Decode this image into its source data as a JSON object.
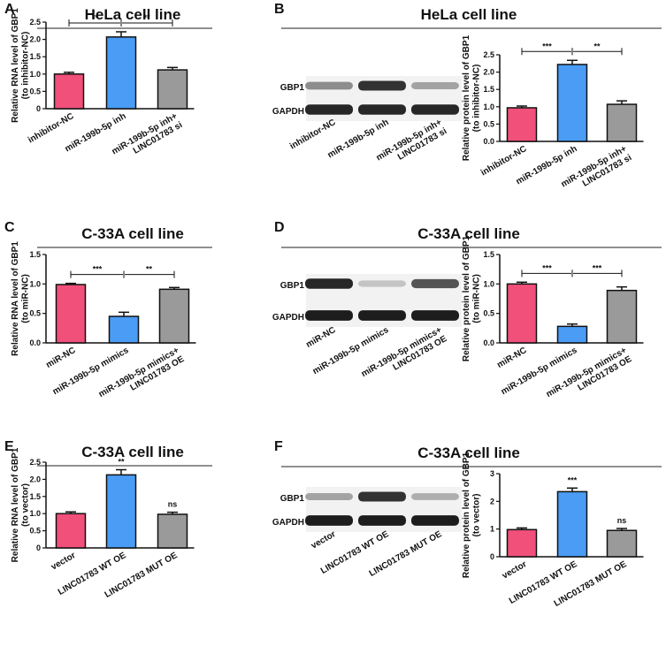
{
  "chart_data": [
    {
      "type": "bar",
      "panel": "A",
      "title": "HeLa cell line",
      "ylabel": "Relative RNA level of GBP1\n(to inhibitor-NC)",
      "categories": [
        "inhibitor-NC",
        "miR-199b-5p inh",
        "miR-199b-5p inh+\nLINC01783 si"
      ],
      "values": [
        1.0,
        2.07,
        1.12
      ],
      "errors": [
        0.05,
        0.15,
        0.07
      ],
      "colors": [
        "#f0507a",
        "#4a9cf5",
        "#9a9a9a"
      ],
      "ylim": [
        0,
        2.5
      ],
      "yticks": [
        0,
        0.5,
        {
          "value": 1,
          "label": "1.0"
        },
        1.5,
        {
          "value": 2,
          "label": "2.0"
        },
        2.5
      ],
      "significance": [
        {
          "label": "**",
          "between": [
            0,
            1
          ]
        },
        {
          "label": "**",
          "between": [
            1,
            2
          ]
        }
      ]
    },
    {
      "type": "bar",
      "panel": "B",
      "title": "HeLa cell line",
      "ylabel": "Relative protein level of GBP1\n(to inhibitor-NC)",
      "categories": [
        "inhibitor-NC",
        "miR-199b-5p inh",
        "miR-199b-5p inh+\nLINC01783 si"
      ],
      "values": [
        0.97,
        2.22,
        1.07
      ],
      "errors": [
        0.05,
        0.12,
        0.1
      ],
      "colors": [
        "#f0507a",
        "#4a9cf5",
        "#9a9a9a"
      ],
      "ylim": [
        0,
        2.5
      ],
      "yticks": [
        {
          "value": 0,
          "label": "0.0"
        },
        0.5,
        {
          "value": 1,
          "label": "1.0"
        },
        1.5,
        {
          "value": 2,
          "label": "2.0"
        },
        2.5
      ],
      "significance": [
        {
          "label": "***",
          "between": [
            0,
            1
          ]
        },
        {
          "label": "**",
          "between": [
            1,
            2
          ]
        }
      ],
      "blot_rows": [
        "GBP1",
        "GAPDH"
      ],
      "blot_lanes": [
        "inhibitor-NC",
        "miR-199b-5p inh",
        "miR-199b-5p inh+\nLINC01783 si"
      ]
    },
    {
      "type": "bar",
      "panel": "C",
      "title": "C-33A cell line",
      "ylabel": "Relative RNA level of GBP1\n(to miR-NC)",
      "categories": [
        "miR-NC",
        "miR-199b-5p mimics",
        "miR-199b-5p mimics+\nLINC01783 OE"
      ],
      "values": [
        0.99,
        0.45,
        0.91
      ],
      "errors": [
        0.02,
        0.07,
        0.03
      ],
      "colors": [
        "#f0507a",
        "#4a9cf5",
        "#9a9a9a"
      ],
      "ylim": [
        0,
        1.5
      ],
      "yticks": [
        {
          "value": 0,
          "label": "0.0"
        },
        0.5,
        {
          "value": 1,
          "label": "1.0"
        },
        1.5
      ],
      "significance": [
        {
          "label": "***",
          "between": [
            0,
            1
          ]
        },
        {
          "label": "**",
          "between": [
            1,
            2
          ]
        }
      ]
    },
    {
      "type": "bar",
      "panel": "D",
      "title": "C-33A cell line",
      "ylabel": "Relative protein level of GBP1\n(to miR-NC)",
      "categories": [
        "miR-NC",
        "miR-199b-5p mimics",
        "miR-199b-5p mimics+\nLINC01783 OE"
      ],
      "values": [
        1.0,
        0.28,
        0.89
      ],
      "errors": [
        0.03,
        0.04,
        0.06
      ],
      "colors": [
        "#f0507a",
        "#4a9cf5",
        "#9a9a9a"
      ],
      "ylim": [
        0,
        1.5
      ],
      "yticks": [
        {
          "value": 0,
          "label": "0.0"
        },
        0.5,
        {
          "value": 1,
          "label": "1.0"
        },
        1.5
      ],
      "significance": [
        {
          "label": "***",
          "between": [
            0,
            1
          ]
        },
        {
          "label": "***",
          "between": [
            1,
            2
          ]
        }
      ],
      "blot_rows": [
        "GBP1",
        "GAPDH"
      ],
      "blot_lanes": [
        "miR-NC",
        "miR-199b-5p mimics",
        "miR-199b-5p mimics+\nLINC01783 OE"
      ]
    },
    {
      "type": "bar",
      "panel": "E",
      "title": "C-33A cell line",
      "ylabel": "Relative RNA level of GBP1\n(to vector)",
      "categories": [
        "vector",
        "LINC01783 WT OE",
        "LINC01783 MUT OE"
      ],
      "values": [
        1.0,
        2.13,
        0.98
      ],
      "errors": [
        0.05,
        0.15,
        0.06
      ],
      "colors": [
        "#f0507a",
        "#4a9cf5",
        "#9a9a9a"
      ],
      "ylim": [
        0,
        2.5
      ],
      "yticks": [
        0,
        0.5,
        {
          "value": 1,
          "label": "1.0"
        },
        1.5,
        {
          "value": 2,
          "label": "2.0"
        },
        2.5
      ],
      "significance": [
        {
          "label": "**",
          "over": 1
        },
        {
          "label": "ns",
          "over": 2
        }
      ]
    },
    {
      "type": "bar",
      "panel": "F",
      "title": "C-33A cell line",
      "ylabel": "Relative protein level of GBP1\n(to vector)",
      "categories": [
        "vector",
        "LINC01783 WT OE",
        "LINC01783 MUT OE"
      ],
      "values": [
        0.98,
        2.35,
        0.95
      ],
      "errors": [
        0.06,
        0.13,
        0.07
      ],
      "colors": [
        "#f0507a",
        "#4a9cf5",
        "#9a9a9a"
      ],
      "ylim": [
        0,
        3
      ],
      "yticks": [
        0,
        1,
        2,
        3
      ],
      "significance": [
        {
          "label": "***",
          "over": 1
        },
        {
          "label": "ns",
          "over": 2
        }
      ],
      "blot_rows": [
        "GBP1",
        "GAPDH"
      ],
      "blot_lanes": [
        "vector",
        "LINC01783 WT OE",
        "LINC01783 MUT OE"
      ]
    }
  ]
}
